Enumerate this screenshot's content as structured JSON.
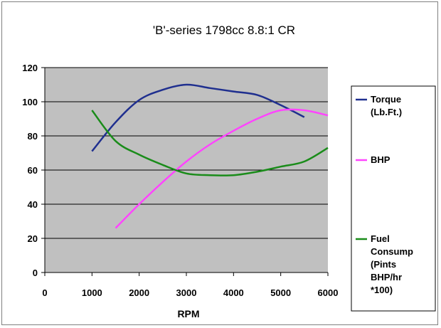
{
  "chart_data": {
    "type": "line",
    "title": "'B'-series 1798cc 8.8:1 CR",
    "xlabel": "RPM",
    "ylabel": "",
    "xlim": [
      0,
      6000
    ],
    "ylim": [
      0,
      120
    ],
    "x_ticks": [
      "0",
      "1000",
      "2000",
      "3000",
      "4000",
      "5000",
      "6000"
    ],
    "y_ticks": [
      "0",
      "20",
      "40",
      "60",
      "80",
      "100",
      "120"
    ],
    "grid": "horizontal",
    "plot_background": "#c0c0c0",
    "legend_position": "right",
    "series": [
      {
        "name": "Torque (Lb.Ft.)",
        "legend_lines": [
          "Torque",
          "(Lb.Ft.)"
        ],
        "color": "#1f2f8f",
        "x": [
          1000,
          1500,
          2000,
          2500,
          3000,
          3500,
          4000,
          4500,
          5000,
          5500
        ],
        "y": [
          71,
          88,
          101,
          107,
          110,
          108,
          106,
          104,
          98,
          91
        ]
      },
      {
        "name": "BHP",
        "legend_lines": [
          "BHP"
        ],
        "color": "#ff44ff",
        "x": [
          1500,
          2000,
          2500,
          3000,
          3500,
          4000,
          4500,
          5000,
          5500,
          6000
        ],
        "y": [
          26,
          40,
          53,
          65,
          75,
          83,
          90,
          95,
          95,
          92
        ]
      },
      {
        "name": "Fuel Consump (Pints BHP/hr *100)",
        "legend_lines": [
          "Fuel",
          "Consump",
          "(Pints",
          "BHP/hr",
          "*100)"
        ],
        "color": "#1a8c1a",
        "x": [
          1000,
          1500,
          2000,
          2500,
          3000,
          3500,
          4000,
          4500,
          5000,
          5500,
          6000
        ],
        "y": [
          95,
          77,
          69,
          63,
          58,
          57,
          57,
          59,
          62,
          65,
          73
        ]
      }
    ]
  }
}
